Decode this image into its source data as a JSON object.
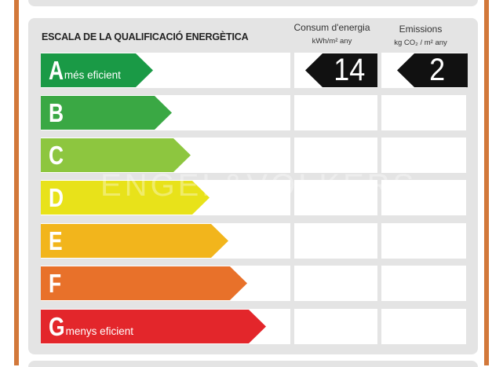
{
  "scale": {
    "title": "ESCALA DE LA QUALIFICACIÓ ENERGÈTICA"
  },
  "columns": {
    "energy": {
      "title": "Consum d'energia",
      "unit": "kWh/m² any"
    },
    "emissions": {
      "title": "Emissions",
      "unit": "kg CO₂ / m² any"
    }
  },
  "ratings": [
    {
      "letter": "A",
      "label": "més eficient",
      "color": "#1a9a46"
    },
    {
      "letter": "B",
      "label": "",
      "color": "#3aa844"
    },
    {
      "letter": "C",
      "label": "",
      "color": "#8dc63f"
    },
    {
      "letter": "D",
      "label": "",
      "color": "#e8e21a"
    },
    {
      "letter": "E",
      "label": "",
      "color": "#f2b51c"
    },
    {
      "letter": "F",
      "label": "",
      "color": "#e8712a"
    },
    {
      "letter": "G",
      "label": "menys eficient",
      "color": "#e3262b"
    }
  ],
  "result": {
    "rating": "A",
    "energy_value": "14",
    "emissions_value": "2"
  },
  "watermark": "ENGEL&VÖLKERS"
}
